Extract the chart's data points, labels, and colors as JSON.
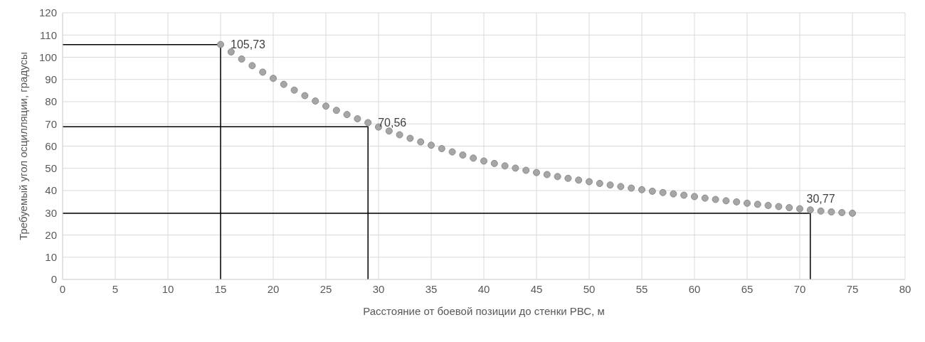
{
  "chart_data": {
    "type": "scatter",
    "xlabel": "Расстояние от боевой позиции до стенки РВС, м",
    "ylabel": "Требуемый угол осцилляции, градусы",
    "xlim": [
      0,
      80
    ],
    "xticks": [
      0,
      5,
      10,
      15,
      20,
      25,
      30,
      35,
      40,
      45,
      50,
      55,
      60,
      65,
      70,
      75,
      80
    ],
    "ylim": [
      0,
      120
    ],
    "yticks": [
      0,
      10,
      20,
      30,
      40,
      50,
      60,
      70,
      80,
      90,
      100,
      110,
      120
    ],
    "grid": true,
    "marker": "circle",
    "series": [
      {
        "color": "#a6a6a6",
        "x": [
          15,
          16,
          17,
          18,
          19,
          20,
          21,
          22,
          23,
          24,
          25,
          26,
          27,
          28,
          29,
          30,
          31,
          32,
          33,
          34,
          35,
          36,
          37,
          38,
          39,
          40,
          41,
          42,
          43,
          44,
          45,
          46,
          47,
          48,
          49,
          50,
          51,
          52,
          53,
          54,
          55,
          56,
          57,
          58,
          59,
          60,
          61,
          62,
          63,
          64,
          65,
          66,
          67,
          68,
          69,
          70,
          71,
          72,
          73,
          74,
          75
        ],
        "values": [
          105.73,
          102.4,
          99.2,
          96.2,
          93.3,
          90.5,
          87.8,
          85.2,
          82.7,
          80.3,
          78.0,
          76.1,
          74.2,
          72.3,
          70.56,
          68.6,
          66.8,
          65.1,
          63.5,
          61.9,
          60.4,
          58.9,
          57.4,
          56.0,
          54.6,
          53.3,
          52.2,
          51.1,
          50.1,
          49.1,
          48.1,
          47.2,
          46.3,
          45.5,
          44.7,
          44.0,
          43.2,
          42.5,
          41.8,
          41.1,
          40.4,
          39.7,
          39.1,
          38.5,
          37.9,
          37.3,
          36.6,
          36.0,
          35.4,
          34.9,
          34.3,
          33.8,
          33.3,
          32.8,
          32.3,
          31.8,
          31.3,
          30.77,
          30.4,
          30.1,
          29.8
        ]
      },
      {
        "type": "line",
        "color": "#000000",
        "marker": "none",
        "x": [
          0,
          15,
          15
        ],
        "values": [
          105.7,
          105.7,
          0
        ]
      },
      {
        "type": "line",
        "color": "#000000",
        "marker": "none",
        "x": [
          0,
          29,
          29
        ],
        "values": [
          68.7,
          68.7,
          0
        ]
      },
      {
        "type": "line",
        "color": "#000000",
        "marker": "none",
        "x": [
          0,
          71,
          71
        ],
        "values": [
          29.8,
          29.8,
          0
        ]
      }
    ],
    "annotations": [
      {
        "text": "105,73",
        "x": 15,
        "y": 105.73
      },
      {
        "text": "70,56",
        "x": 29,
        "y": 70.56
      },
      {
        "text": "30,77",
        "x": 72,
        "y": 30.77
      }
    ]
  }
}
